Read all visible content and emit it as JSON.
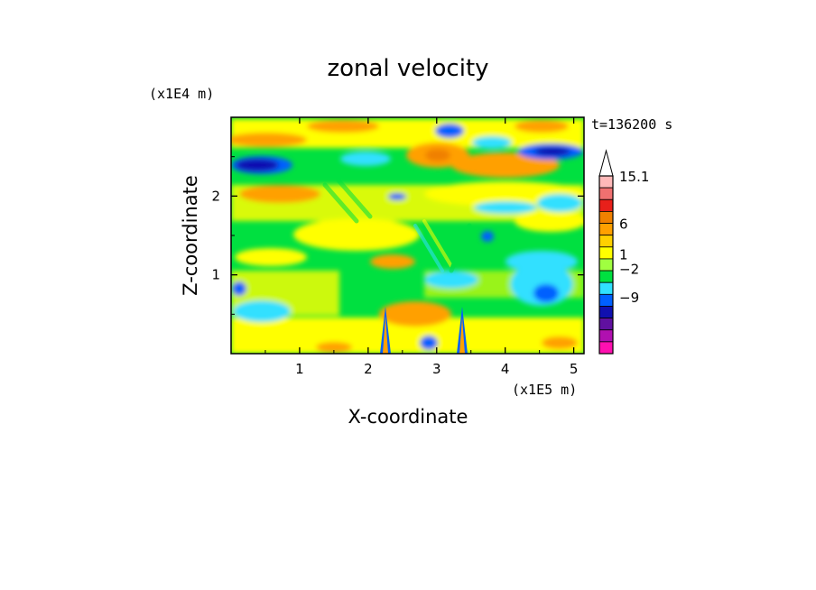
{
  "chart_data": {
    "type": "heatmap",
    "title": "zonal velocity",
    "xlabel": "X-coordinate",
    "ylabel": "Z-coordinate",
    "x_scale_label": "(x1E5 m)",
    "y_scale_label": "(x1E4 m)",
    "time_label": "t=136200 s",
    "xlim": [
      0,
      5.15
    ],
    "ylim": [
      0,
      3.0
    ],
    "x_ticks": [
      1,
      2,
      3,
      4,
      5
    ],
    "y_ticks": [
      1,
      2
    ],
    "colorbar": {
      "labels": [
        "15.1",
        "6",
        "1",
        "−2",
        "−9"
      ],
      "colors": [
        "#ffffff",
        "#ffb9b9",
        "#f07070",
        "#e8201a",
        "#f08000",
        "#ffa000",
        "#ffd000",
        "#ffff00",
        "#a0ff40",
        "#00e040",
        "#30e0ff",
        "#0060ff",
        "#1010b0",
        "#6010a0",
        "#b010b0",
        "#ff10b0"
      ],
      "extend": "max"
    },
    "features": {
      "terrain_peaks_x": [
        2.25,
        3.35
      ]
    }
  }
}
